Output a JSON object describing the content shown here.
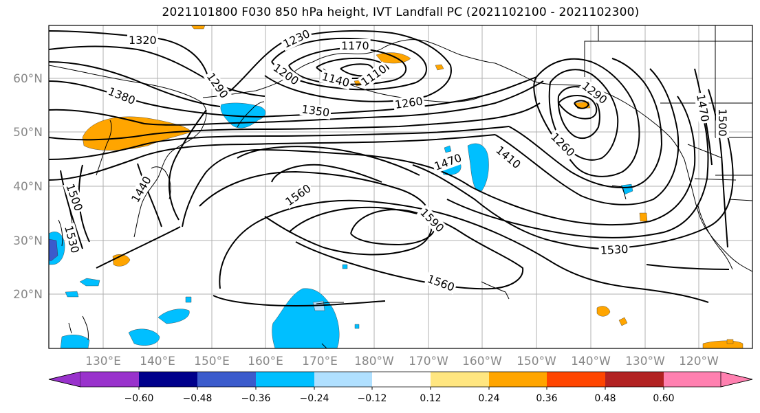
{
  "title": "2021101800 F030 850 hPa height, IVT Landfall PC (2021102100 - 2021102300)",
  "lat_labels": [
    "60°N",
    "50°N",
    "40°N",
    "30°N",
    "20°N"
  ],
  "lon_labels": [
    "130°E",
    "140°E",
    "150°E",
    "160°E",
    "170°E",
    "180°W",
    "170°W",
    "160°W",
    "150°W",
    "140°W",
    "130°W",
    "120°W"
  ],
  "contour_labels": [
    "1320",
    "1230",
    "1170",
    "1200",
    "1140",
    "1110",
    "1290",
    "1380",
    "1350",
    "1260",
    "1290",
    "1260",
    "1410",
    "1470",
    "1440",
    "1560",
    "1590",
    "1530",
    "1560",
    "1500",
    "1530",
    "1470",
    "1500"
  ],
  "colorbar": {
    "colors": [
      "#9932cc",
      "#00008b",
      "#3b5bcc",
      "#00bfff",
      "#b0e0ff",
      "#ffffff",
      "#ffe680",
      "#ffa500",
      "#ff4500",
      "#b22222",
      "#ff80b0"
    ],
    "tick_labels": [
      "−0.60",
      "−0.48",
      "−0.36",
      "−0.24",
      "−0.12",
      "0.12",
      "0.24",
      "0.36",
      "0.48",
      "0.60"
    ]
  }
}
